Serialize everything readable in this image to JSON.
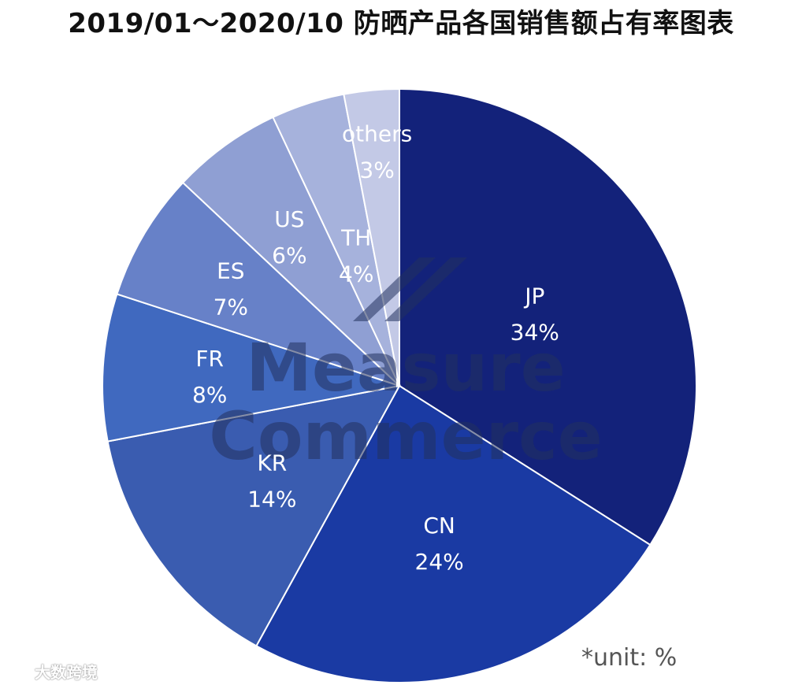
{
  "title": "2019/01～2020/10 防晒产品各国销售额占有率图表",
  "chart_data": {
    "type": "pie",
    "unit_note": "*unit: %",
    "slices": [
      {
        "label": "JP",
        "value": 34,
        "value_label": "34%",
        "color": "#13227a"
      },
      {
        "label": "CN",
        "value": 24,
        "value_label": "24%",
        "color": "#1a3aa3"
      },
      {
        "label": "KR",
        "value": 14,
        "value_label": "14%",
        "color": "#3a5cb0"
      },
      {
        "label": "FR",
        "value": 8,
        "value_label": "8%",
        "color": "#4069bf"
      },
      {
        "label": "ES",
        "value": 7,
        "value_label": "7%",
        "color": "#6781c8"
      },
      {
        "label": "US",
        "value": 6,
        "value_label": "6%",
        "color": "#8f9fd3"
      },
      {
        "label": "TH",
        "value": 4,
        "value_label": "4%",
        "color": "#a6b2dc"
      },
      {
        "label": "others",
        "value": 3,
        "value_label": "3%",
        "color": "#c3c9e6"
      }
    ]
  },
  "watermark": {
    "line1": "Measure",
    "line2": "Commerce"
  },
  "footer_logo": {
    "text": "大数跨境"
  }
}
